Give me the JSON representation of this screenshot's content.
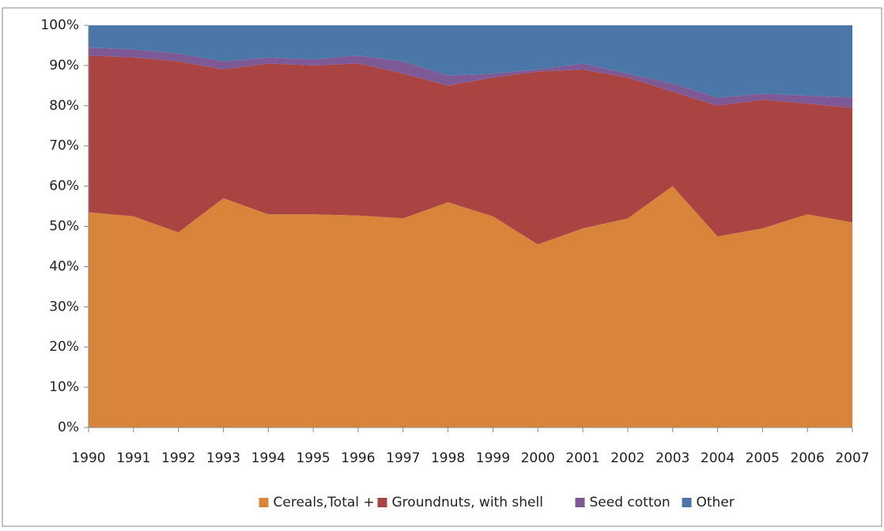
{
  "chart_data": {
    "type": "stacked_area_100",
    "categories": [
      "1990",
      "1991",
      "1992",
      "1993",
      "1994",
      "1995",
      "1996",
      "1997",
      "1998",
      "1999",
      "2000",
      "2001",
      "2002",
      "2003",
      "2004",
      "2005",
      "2006",
      "2007"
    ],
    "series": [
      {
        "name": "Cereals,Total +",
        "color": "#d9843b",
        "values": [
          53.5,
          52.5,
          48.5,
          57,
          53,
          53,
          52.7,
          52,
          56,
          52.5,
          45.5,
          49.5,
          52,
          60,
          47.5,
          49.5,
          53,
          51
        ]
      },
      {
        "name": "Groundnuts, with shell",
        "color": "#a94442",
        "values": [
          39,
          39.5,
          42.5,
          32,
          37.5,
          37,
          37.8,
          36,
          29,
          34.5,
          43,
          39.5,
          35,
          23.5,
          32.5,
          32,
          27.5,
          28.5
        ]
      },
      {
        "name": "Seed cotton",
        "color": "#7d5a96",
        "values": [
          2,
          2,
          2,
          2,
          1.5,
          1.5,
          2,
          3,
          2.5,
          1,
          0.5,
          1.5,
          1,
          2,
          2,
          1.5,
          2,
          2.5
        ]
      },
      {
        "name": "Other",
        "color": "#4a76a8",
        "values": [
          5.5,
          6,
          7,
          9,
          8,
          8.5,
          7.5,
          9,
          12.5,
          12,
          11,
          9.5,
          12,
          14.5,
          18,
          17,
          17.5,
          18
        ]
      }
    ],
    "ylim": [
      0,
      100
    ],
    "yticks": [
      {
        "value": 0,
        "label": "0%"
      },
      {
        "value": 10,
        "label": "10%"
      },
      {
        "value": 20,
        "label": "20%"
      },
      {
        "value": 30,
        "label": "30%"
      },
      {
        "value": 40,
        "label": "40%"
      },
      {
        "value": 50,
        "label": "50%"
      },
      {
        "value": 60,
        "label": "60%"
      },
      {
        "value": 70,
        "label": "70%"
      },
      {
        "value": 80,
        "label": "80%"
      },
      {
        "value": 90,
        "label": "90%"
      },
      {
        "value": 100,
        "label": "100%"
      }
    ],
    "legend": "bottom"
  }
}
